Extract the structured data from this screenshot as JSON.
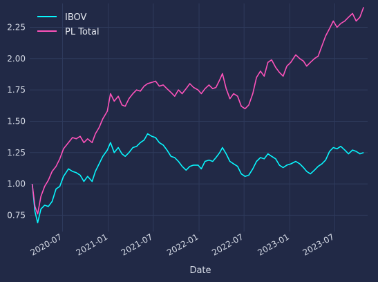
{
  "chart_data": {
    "type": "line",
    "title": "",
    "xlabel": "Date",
    "ylabel": "",
    "ylim": [
      0.62,
      2.44
    ],
    "xlim": [
      "2020-02-20",
      "2023-11-10"
    ],
    "grid": true,
    "legend_position": "top-left",
    "x_ticks": [
      "2020-07",
      "2021-01",
      "2021-07",
      "2022-01",
      "2022-07",
      "2023-01",
      "2023-07"
    ],
    "y_ticks": [
      "0.75",
      "1.00",
      "1.25",
      "1.50",
      "1.75",
      "2.00",
      "2.25"
    ],
    "colors": {
      "background": "#212946",
      "grid": "#2f3b5c",
      "text": "#d6dbe6"
    },
    "series": [
      {
        "name": "IBOV",
        "color": "#08f7fe",
        "points": [
          [
            "2020-03-01",
            1.0
          ],
          [
            "2020-03-12",
            0.78
          ],
          [
            "2020-03-23",
            0.69
          ],
          [
            "2020-04-05",
            0.8
          ],
          [
            "2020-04-20",
            0.83
          ],
          [
            "2020-05-05",
            0.82
          ],
          [
            "2020-05-20",
            0.86
          ],
          [
            "2020-06-05",
            0.96
          ],
          [
            "2020-06-20",
            0.98
          ],
          [
            "2020-07-05",
            1.06
          ],
          [
            "2020-07-25",
            1.12
          ],
          [
            "2020-08-10",
            1.1
          ],
          [
            "2020-08-25",
            1.09
          ],
          [
            "2020-09-10",
            1.07
          ],
          [
            "2020-09-25",
            1.02
          ],
          [
            "2020-10-10",
            1.06
          ],
          [
            "2020-10-28",
            1.02
          ],
          [
            "2020-11-10",
            1.1
          ],
          [
            "2020-11-25",
            1.16
          ],
          [
            "2020-12-10",
            1.22
          ],
          [
            "2020-12-28",
            1.27
          ],
          [
            "2021-01-10",
            1.33
          ],
          [
            "2021-01-25",
            1.25
          ],
          [
            "2021-02-10",
            1.29
          ],
          [
            "2021-02-25",
            1.24
          ],
          [
            "2021-03-10",
            1.22
          ],
          [
            "2021-03-25",
            1.25
          ],
          [
            "2021-04-10",
            1.29
          ],
          [
            "2021-04-25",
            1.3
          ],
          [
            "2021-05-10",
            1.33
          ],
          [
            "2021-05-25",
            1.35
          ],
          [
            "2021-06-08",
            1.4
          ],
          [
            "2021-06-25",
            1.38
          ],
          [
            "2021-07-10",
            1.37
          ],
          [
            "2021-07-25",
            1.33
          ],
          [
            "2021-08-10",
            1.31
          ],
          [
            "2021-08-25",
            1.27
          ],
          [
            "2021-09-10",
            1.22
          ],
          [
            "2021-09-25",
            1.21
          ],
          [
            "2021-10-10",
            1.18
          ],
          [
            "2021-10-25",
            1.14
          ],
          [
            "2021-11-10",
            1.11
          ],
          [
            "2021-11-25",
            1.14
          ],
          [
            "2021-12-10",
            1.15
          ],
          [
            "2021-12-28",
            1.15
          ],
          [
            "2022-01-10",
            1.12
          ],
          [
            "2022-01-25",
            1.18
          ],
          [
            "2022-02-10",
            1.19
          ],
          [
            "2022-02-25",
            1.18
          ],
          [
            "2022-03-10",
            1.21
          ],
          [
            "2022-03-25",
            1.25
          ],
          [
            "2022-04-05",
            1.29
          ],
          [
            "2022-04-20",
            1.24
          ],
          [
            "2022-05-05",
            1.18
          ],
          [
            "2022-05-20",
            1.16
          ],
          [
            "2022-06-05",
            1.14
          ],
          [
            "2022-06-20",
            1.08
          ],
          [
            "2022-07-05",
            1.06
          ],
          [
            "2022-07-20",
            1.07
          ],
          [
            "2022-08-05",
            1.12
          ],
          [
            "2022-08-20",
            1.18
          ],
          [
            "2022-09-05",
            1.21
          ],
          [
            "2022-09-20",
            1.2
          ],
          [
            "2022-10-05",
            1.24
          ],
          [
            "2022-10-20",
            1.22
          ],
          [
            "2022-11-05",
            1.2
          ],
          [
            "2022-11-20",
            1.15
          ],
          [
            "2022-12-05",
            1.13
          ],
          [
            "2022-12-20",
            1.15
          ],
          [
            "2023-01-05",
            1.16
          ],
          [
            "2023-01-25",
            1.18
          ],
          [
            "2023-02-10",
            1.16
          ],
          [
            "2023-02-25",
            1.13
          ],
          [
            "2023-03-10",
            1.1
          ],
          [
            "2023-03-25",
            1.08
          ],
          [
            "2023-04-10",
            1.11
          ],
          [
            "2023-04-25",
            1.14
          ],
          [
            "2023-05-10",
            1.16
          ],
          [
            "2023-05-25",
            1.19
          ],
          [
            "2023-06-10",
            1.26
          ],
          [
            "2023-06-25",
            1.29
          ],
          [
            "2023-07-10",
            1.28
          ],
          [
            "2023-07-25",
            1.3
          ],
          [
            "2023-08-10",
            1.27
          ],
          [
            "2023-08-25",
            1.24
          ],
          [
            "2023-09-10",
            1.27
          ],
          [
            "2023-09-25",
            1.26
          ],
          [
            "2023-10-10",
            1.24
          ],
          [
            "2023-10-25",
            1.25
          ]
        ]
      },
      {
        "name": "PL Total",
        "color": "#fe53bb",
        "points": [
          [
            "2020-03-01",
            1.0
          ],
          [
            "2020-03-12",
            0.82
          ],
          [
            "2020-03-23",
            0.76
          ],
          [
            "2020-04-05",
            0.9
          ],
          [
            "2020-04-20",
            0.98
          ],
          [
            "2020-05-05",
            1.03
          ],
          [
            "2020-05-20",
            1.1
          ],
          [
            "2020-06-05",
            1.14
          ],
          [
            "2020-06-20",
            1.2
          ],
          [
            "2020-07-05",
            1.28
          ],
          [
            "2020-07-25",
            1.33
          ],
          [
            "2020-08-10",
            1.37
          ],
          [
            "2020-08-25",
            1.36
          ],
          [
            "2020-09-10",
            1.38
          ],
          [
            "2020-09-25",
            1.33
          ],
          [
            "2020-10-10",
            1.36
          ],
          [
            "2020-10-28",
            1.33
          ],
          [
            "2020-11-10",
            1.4
          ],
          [
            "2020-11-25",
            1.45
          ],
          [
            "2020-12-10",
            1.52
          ],
          [
            "2020-12-28",
            1.58
          ],
          [
            "2021-01-10",
            1.72
          ],
          [
            "2021-01-25",
            1.66
          ],
          [
            "2021-02-10",
            1.7
          ],
          [
            "2021-02-25",
            1.63
          ],
          [
            "2021-03-10",
            1.62
          ],
          [
            "2021-03-25",
            1.68
          ],
          [
            "2021-04-10",
            1.72
          ],
          [
            "2021-04-25",
            1.75
          ],
          [
            "2021-05-10",
            1.74
          ],
          [
            "2021-05-25",
            1.78
          ],
          [
            "2021-06-08",
            1.8
          ],
          [
            "2021-06-25",
            1.81
          ],
          [
            "2021-07-10",
            1.82
          ],
          [
            "2021-07-25",
            1.78
          ],
          [
            "2021-08-10",
            1.79
          ],
          [
            "2021-08-25",
            1.76
          ],
          [
            "2021-09-10",
            1.73
          ],
          [
            "2021-09-25",
            1.7
          ],
          [
            "2021-10-10",
            1.75
          ],
          [
            "2021-10-25",
            1.72
          ],
          [
            "2021-11-10",
            1.76
          ],
          [
            "2021-11-25",
            1.8
          ],
          [
            "2021-12-10",
            1.77
          ],
          [
            "2021-12-28",
            1.75
          ],
          [
            "2022-01-10",
            1.72
          ],
          [
            "2022-01-25",
            1.76
          ],
          [
            "2022-02-10",
            1.79
          ],
          [
            "2022-02-25",
            1.76
          ],
          [
            "2022-03-10",
            1.77
          ],
          [
            "2022-03-25",
            1.83
          ],
          [
            "2022-04-05",
            1.88
          ],
          [
            "2022-04-20",
            1.76
          ],
          [
            "2022-05-05",
            1.68
          ],
          [
            "2022-05-20",
            1.72
          ],
          [
            "2022-06-05",
            1.7
          ],
          [
            "2022-06-20",
            1.62
          ],
          [
            "2022-07-05",
            1.6
          ],
          [
            "2022-07-20",
            1.63
          ],
          [
            "2022-08-05",
            1.72
          ],
          [
            "2022-08-20",
            1.85
          ],
          [
            "2022-09-05",
            1.9
          ],
          [
            "2022-09-20",
            1.86
          ],
          [
            "2022-10-05",
            1.97
          ],
          [
            "2022-10-20",
            1.99
          ],
          [
            "2022-11-05",
            1.93
          ],
          [
            "2022-11-20",
            1.89
          ],
          [
            "2022-12-05",
            1.86
          ],
          [
            "2022-12-20",
            1.94
          ],
          [
            "2023-01-05",
            1.97
          ],
          [
            "2023-01-25",
            2.03
          ],
          [
            "2023-02-10",
            2.0
          ],
          [
            "2023-02-25",
            1.98
          ],
          [
            "2023-03-10",
            1.94
          ],
          [
            "2023-03-25",
            1.97
          ],
          [
            "2023-04-10",
            2.0
          ],
          [
            "2023-04-25",
            2.02
          ],
          [
            "2023-05-10",
            2.1
          ],
          [
            "2023-05-25",
            2.18
          ],
          [
            "2023-06-10",
            2.24
          ],
          [
            "2023-06-25",
            2.3
          ],
          [
            "2023-07-10",
            2.25
          ],
          [
            "2023-07-25",
            2.28
          ],
          [
            "2023-08-10",
            2.3
          ],
          [
            "2023-08-25",
            2.33
          ],
          [
            "2023-09-10",
            2.36
          ],
          [
            "2023-09-25",
            2.3
          ],
          [
            "2023-10-10",
            2.33
          ],
          [
            "2023-10-25",
            2.41
          ]
        ]
      }
    ]
  }
}
